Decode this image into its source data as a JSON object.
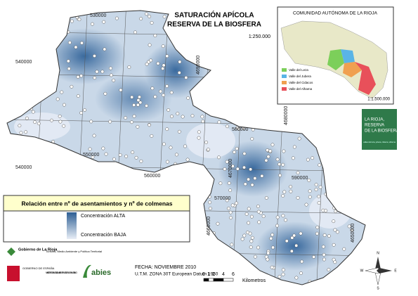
{
  "title": "SATURACIÓN APÍCOLA",
  "subtitle": "RESERVA DE LA BIOSFERA",
  "scale": "1:250.000",
  "grid_labels": [
    "530000",
    "540000",
    "550000",
    "540000",
    "560000",
    "580000",
    "590000",
    "570000",
    "4690000",
    "4680000",
    "4670000",
    "4660000",
    "4650000"
  ],
  "inset": {
    "title": "COMUNIDAD AUTÓNOMA DE LA RIOJA",
    "scale": "1:1.500.000",
    "legend": [
      {
        "name": "Valle del Leza",
        "color": "#7ccf5a"
      },
      {
        "name": "Valle del Jubera",
        "color": "#5ab4e6"
      },
      {
        "name": "Valle del Cidacos",
        "color": "#f0a050"
      },
      {
        "name": "Valle del Alhama",
        "color": "#e8505a"
      }
    ]
  },
  "logo": {
    "lines": [
      "LA RIOJA,",
      "RESERVA",
      "DE LA BIOSFERA"
    ],
    "tagline": "valles del leza, jubera, cidacos, alhama"
  },
  "legend": {
    "title": "Relación entre nº de asentamientos y nº de colmenas",
    "high": "Concentración ALTA",
    "low": "Concentración BAJA"
  },
  "footer": {
    "gov_rioja": "Gobierno de La Rioja",
    "department": "Turismo, Medio Ambiente y Política Territorial",
    "gov_spain": "GOBIERNO DE ESPAÑA",
    "ministry": "MINISTERIO DE MEDIO AMBIENTE Y MEDIO RURAL Y MARINO",
    "abies": "abies",
    "date": "FECHA: NOVIEMBRE 2010",
    "datum": "U.T.M. ZONA 30T European Datum 1950",
    "scalebar": [
      "0",
      "1",
      "2",
      "4",
      "6"
    ],
    "units": "Kilometros"
  },
  "compass": [
    "N",
    "S",
    "E",
    "W"
  ]
}
